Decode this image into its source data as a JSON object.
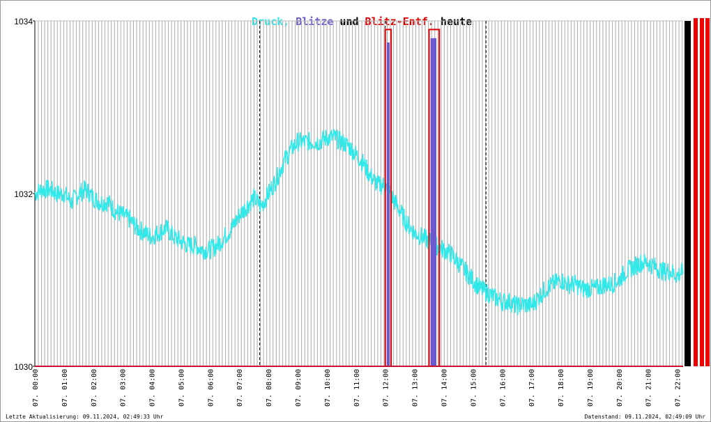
{
  "header": {
    "title_parts": [
      {
        "text": "Druck,",
        "color": "#33e8e8"
      },
      {
        "text": "Blitze",
        "color": "#6a5acd"
      },
      {
        "text": "und",
        "color": "#000000"
      },
      {
        "text": "Blitz-Entf.",
        "color": "#dd0000"
      },
      {
        "text": "heute",
        "color": "#000000"
      }
    ]
  },
  "footer": {
    "left": "Letzte Aktualisierung: 09.11.2024, 02:49:33 Uhr",
    "right": "Datenstand: 09.11.2024, 02:49:09 Uhr"
  },
  "chart_data": {
    "type": "line",
    "y_ticks": [
      "1030",
      "1032",
      "1034"
    ],
    "ylim": [
      1030,
      1034
    ],
    "x_tick_labels": [
      "07. 00:00",
      "07. 01:00",
      "07. 02:00",
      "07. 03:00",
      "07. 04:00",
      "07. 05:00",
      "07. 06:00",
      "07. 07:00",
      "07. 08:00",
      "07. 09:00",
      "07. 10:00",
      "07. 11:00",
      "07. 12:00",
      "07. 13:00",
      "07. 14:00",
      "07. 15:00",
      "07. 16:00",
      "07. 17:00",
      "07. 18:00",
      "07. 19:00",
      "07. 20:00",
      "07. 21:00",
      "07. 22:00"
    ],
    "x_hours_range": [
      0,
      22.2
    ],
    "dashed_markers_hours": [
      7.7,
      12.0,
      15.45
    ],
    "series": [
      {
        "key": "druck",
        "color": "#33e8e8",
        "hours": [
          0,
          0.25,
          0.5,
          0.75,
          1,
          1.25,
          1.5,
          1.75,
          2,
          2.25,
          2.5,
          2.75,
          3,
          3.25,
          3.5,
          3.75,
          4,
          4.25,
          4.5,
          4.75,
          5,
          5.25,
          5.5,
          5.75,
          6,
          6.25,
          6.5,
          6.75,
          7,
          7.25,
          7.5,
          7.75,
          8,
          8.25,
          8.5,
          8.75,
          9,
          9.25,
          9.5,
          9.75,
          10,
          10.25,
          10.5,
          10.75,
          11,
          11.25,
          11.5,
          11.75,
          12,
          12.25,
          12.5,
          12.75,
          13,
          13.25,
          13.5,
          13.75,
          14,
          14.25,
          14.5,
          14.75,
          15,
          15.25,
          15.5,
          15.75,
          16,
          16.25,
          16.5,
          16.75,
          17,
          17.25,
          17.5,
          17.75,
          18,
          18.25,
          18.5,
          18.75,
          19,
          19.25,
          19.5,
          19.75,
          20,
          20.25,
          20.5,
          20.75,
          21,
          21.25,
          21.5,
          21.75,
          22,
          22.2
        ],
        "values": [
          1032.0,
          1032.05,
          1032.05,
          1032.0,
          1032.0,
          1031.9,
          1032.0,
          1032.05,
          1031.95,
          1031.9,
          1031.9,
          1031.8,
          1031.75,
          1031.7,
          1031.6,
          1031.55,
          1031.5,
          1031.55,
          1031.6,
          1031.5,
          1031.45,
          1031.4,
          1031.4,
          1031.35,
          1031.35,
          1031.4,
          1031.5,
          1031.6,
          1031.75,
          1031.85,
          1031.95,
          1031.85,
          1032.0,
          1032.15,
          1032.35,
          1032.5,
          1032.6,
          1032.6,
          1032.6,
          1032.6,
          1032.65,
          1032.65,
          1032.6,
          1032.55,
          1032.45,
          1032.35,
          1032.2,
          1032.1,
          1032.1,
          1031.95,
          1031.8,
          1031.65,
          1031.55,
          1031.5,
          1031.45,
          1031.4,
          1031.35,
          1031.3,
          1031.2,
          1031.1,
          1031.0,
          1030.9,
          1030.85,
          1030.8,
          1030.75,
          1030.75,
          1030.7,
          1030.72,
          1030.7,
          1030.8,
          1030.9,
          1030.95,
          1031.0,
          1030.95,
          1030.95,
          1030.9,
          1030.9,
          1030.9,
          1030.95,
          1030.95,
          1031.0,
          1031.1,
          1031.15,
          1031.2,
          1031.2,
          1031.15,
          1031.1,
          1031.1,
          1031.05,
          1031.1
        ]
      },
      {
        "key": "blitze",
        "color": "#6a5acd",
        "bars_hours": [
          [
            12.05,
            12.15
          ],
          [
            13.55,
            13.75
          ]
        ],
        "bar_values": [
          1033.75,
          1033.8
        ]
      },
      {
        "key": "blitz_entf",
        "color": "#dd0000",
        "baseline": 1030,
        "boxes_hours": [
          [
            12.0,
            12.2
          ],
          [
            13.5,
            13.85
          ]
        ],
        "box_top": 1033.9
      }
    ]
  }
}
